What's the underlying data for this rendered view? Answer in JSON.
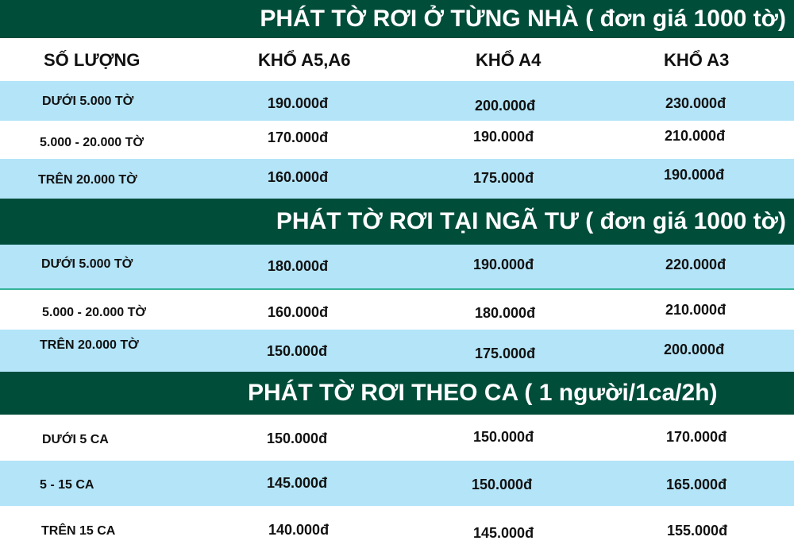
{
  "sections": [
    {
      "title": "PHÁT TỜ RƠI Ở TỪNG NHÀ ( đơn giá 1000 tờ)",
      "rows": [
        {
          "label": "DƯỚI 5.000 TỜ",
          "a56": "190.000đ",
          "a4": "200.000đ",
          "a3": "230.000đ"
        },
        {
          "label": "5.000 - 20.000 TỜ",
          "a56": "170.000đ",
          "a4": "190.000đ",
          "a3": "210.000đ"
        },
        {
          "label": "TRÊN 20.000 TỜ",
          "a56": "160.000đ",
          "a4": "175.000đ",
          "a3": "190.000đ"
        }
      ]
    },
    {
      "title": "PHÁT TỜ RƠI TẠI NGÃ TƯ ( đơn giá 1000 tờ)",
      "rows": [
        {
          "label": "DƯỚI 5.000 TỜ",
          "a56": "180.000đ",
          "a4": "190.000đ",
          "a3": "220.000đ"
        },
        {
          "label": "5.000 - 20.000 TỜ",
          "a56": "160.000đ",
          "a4": "180.000đ",
          "a3": "210.000đ"
        },
        {
          "label": "TRÊN 20.000 TỜ",
          "a56": "150.000đ",
          "a4": "175.000đ",
          "a3": "200.000đ"
        }
      ]
    },
    {
      "title": "PHÁT TỜ RƠI THEO CA ( 1 người/1ca/2h)",
      "rows": [
        {
          "label": "DƯỚI 5 CA",
          "a56": "150.000đ",
          "a4": "150.000đ",
          "a3": "170.000đ"
        },
        {
          "label": "5 - 15 CA",
          "a56": "145.000đ",
          "a4": "150.000đ",
          "a3": "165.000đ"
        },
        {
          "label": "TRÊN 15 CA",
          "a56": "140.000đ",
          "a4": "145.000đ",
          "a3": "155.000đ"
        }
      ]
    }
  ],
  "headers": {
    "quantity": "SỐ LƯỢNG",
    "a56": "KHỔ A5,A6",
    "a4": "KHỔ A4",
    "a3": "KHỔ A3"
  },
  "colors": {
    "banner": "#004d3a",
    "row_light": "#b3e4f8",
    "row_white": "#ffffff",
    "divider": "#35b39a"
  }
}
